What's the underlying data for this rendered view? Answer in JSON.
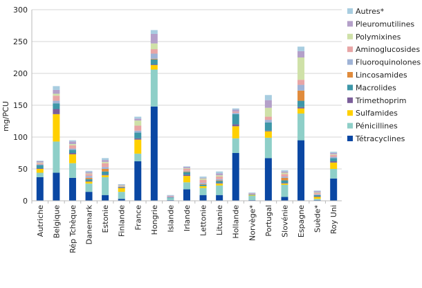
{
  "chart_data": {
    "type": "bar",
    "stacked": true,
    "title": "",
    "xlabel": "",
    "ylabel": "mg/PCU",
    "ylim": [
      0,
      300
    ],
    "yticks": [
      0,
      50,
      100,
      150,
      200,
      250,
      300
    ],
    "grid": true,
    "legend_position": "right",
    "categories": [
      "Autriche",
      "Belgique",
      "Rép Tchèque",
      "Danemark",
      "Estonie",
      "Finlande",
      "France",
      "Hongrie",
      "Islande",
      "Irlande",
      "Lettonie",
      "Lituanie",
      "Hollande",
      "Norvège*",
      "Portugal",
      "Slovénie",
      "Espagne",
      "Suède*",
      "Roy Uni"
    ],
    "series": [
      {
        "name": "Tétracyclines",
        "color": "#0a47a3",
        "values": [
          37,
          44,
          36,
          14,
          9,
          3,
          62,
          148,
          1,
          18,
          9,
          9,
          75,
          1,
          67,
          6,
          95,
          1,
          35
        ]
      },
      {
        "name": "Pénicillines",
        "color": "#8ecfc8",
        "values": [
          7,
          49,
          23,
          13,
          28,
          11,
          12,
          58,
          3,
          11,
          11,
          15,
          23,
          7,
          32,
          19,
          42,
          2,
          15
        ]
      },
      {
        "name": "Sulfamides",
        "color": "#ffd000",
        "values": [
          6,
          43,
          14,
          3,
          3,
          6,
          22,
          7,
          0,
          10,
          3,
          3,
          19,
          1,
          10,
          2,
          8,
          3,
          10
        ]
      },
      {
        "name": "Trimethoprim",
        "color": "#7a5e9a",
        "values": [
          1,
          8,
          2,
          1,
          1,
          1,
          2,
          1,
          0,
          2,
          0,
          1,
          3,
          0,
          1,
          1,
          2,
          1,
          2
        ]
      },
      {
        "name": "Macrolides",
        "color": "#3d97a8",
        "values": [
          5,
          9,
          5,
          3,
          5,
          1,
          9,
          8,
          1,
          4,
          2,
          3,
          16,
          1,
          13,
          4,
          10,
          2,
          5
        ]
      },
      {
        "name": "Lincosamides",
        "color": "#e08b3c",
        "values": [
          0,
          0,
          0,
          2,
          4,
          0,
          0,
          1,
          0,
          1,
          1,
          1,
          0,
          0,
          0,
          4,
          16,
          0,
          0
        ]
      },
      {
        "name": "Fluoroquinolones",
        "color": "#9fb3d6",
        "values": [
          1,
          4,
          2,
          3,
          3,
          0,
          3,
          8,
          1,
          1,
          2,
          2,
          2,
          0,
          4,
          2,
          9,
          1,
          2
        ]
      },
      {
        "name": "Aminoglucosides",
        "color": "#e8a5a5",
        "values": [
          2,
          8,
          5,
          3,
          6,
          1,
          8,
          7,
          1,
          3,
          5,
          4,
          2,
          1,
          5,
          4,
          8,
          2,
          3
        ]
      },
      {
        "name": "Polymixines",
        "color": "#cfe1a8",
        "values": [
          1,
          3,
          2,
          1,
          2,
          1,
          8,
          9,
          0,
          1,
          2,
          2,
          0,
          0,
          14,
          2,
          35,
          1,
          1
        ]
      },
      {
        "name": "Pleuromutilines",
        "color": "#b4a0c9",
        "values": [
          2,
          6,
          4,
          2,
          3,
          1,
          3,
          15,
          1,
          2,
          1,
          3,
          3,
          1,
          12,
          2,
          10,
          2,
          2
        ]
      },
      {
        "name": "Autres*",
        "color": "#a8cde0",
        "values": [
          1,
          6,
          2,
          2,
          3,
          1,
          3,
          6,
          1,
          1,
          2,
          3,
          2,
          1,
          8,
          2,
          7,
          1,
          2
        ]
      }
    ]
  }
}
